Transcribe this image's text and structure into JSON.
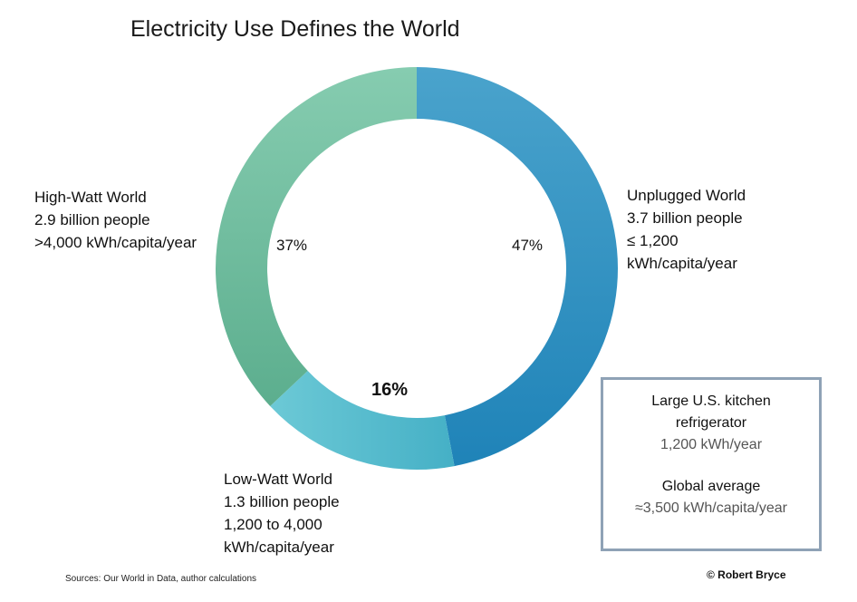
{
  "title": "Electricity Use Defines the World",
  "chart_data": {
    "type": "pie",
    "variant": "donut",
    "start": "12 o'clock, clockwise",
    "series": [
      {
        "name": "Unplugged World",
        "value": 47,
        "value_label": "47%",
        "lines": [
          "Unplugged World",
          "3.7 billion people",
          "≤ 1,200",
          "kWh/capita/year"
        ],
        "color": "#2c8cbc"
      },
      {
        "name": "Low-Watt World",
        "value": 16,
        "value_label": "16%",
        "lines": [
          "Low-Watt World",
          "1.3 billion people",
          "1,200 to 4,000",
          "kWh/capita/year"
        ],
        "color": "#5bbccd"
      },
      {
        "name": "High-Watt World",
        "value": 37,
        "value_label": "37%",
        "lines": [
          "High-Watt World",
          "2.9 billion people",
          ">4,000 kWh/capita/year"
        ],
        "color": "#72bda0"
      }
    ]
  },
  "infobox": {
    "heading1_line1": "Large U.S. kitchen",
    "heading1_line2": "refrigerator",
    "value1": "1,200 kWh/year",
    "heading2": "Global average",
    "value2": "≈3,500 kWh/capita/year"
  },
  "source": "Sources: Our World in Data, author calculations",
  "credit": "© Robert Bryce"
}
